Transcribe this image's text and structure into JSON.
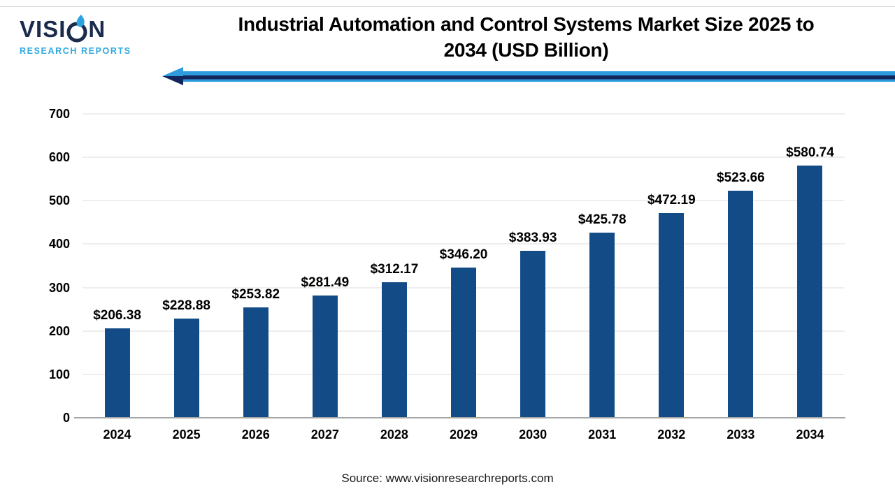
{
  "logo": {
    "brand_part1": "VISI",
    "brand_part2": "N",
    "subtitle": "RESEARCH REPORTS"
  },
  "header": {
    "title_line1": "Industrial Automation and Control Systems Market Size 2025 to",
    "title_line2": "2034 (USD Billion)"
  },
  "source": "Source: www.visionresearchreports.com",
  "colors": {
    "bar_blue": "#134b87",
    "light_blue": "#2e9bdf",
    "arrow_navy": "#12265c",
    "logo_navy": "#1a2b4c",
    "logo_blue": "#2fa9e1"
  },
  "chart_data": {
    "type": "bar",
    "title": "Industrial Automation and Control Systems Market Size 2025 to 2034 (USD Billion)",
    "xlabel": "",
    "ylabel": "",
    "categories": [
      "2024",
      "2025",
      "2026",
      "2027",
      "2028",
      "2029",
      "2030",
      "2031",
      "2032",
      "2033",
      "2034"
    ],
    "values": [
      206.38,
      228.88,
      253.82,
      281.49,
      312.17,
      346.2,
      383.93,
      425.78,
      472.19,
      523.66,
      580.74
    ],
    "labels": [
      "$206.38",
      "$228.88",
      "$253.82",
      "$281.49",
      "$312.17",
      "$346.20",
      "$383.93",
      "$425.78",
      "$472.19",
      "$523.66",
      "$580.74"
    ],
    "yticks": [
      0,
      100,
      200,
      300,
      400,
      500,
      600,
      700
    ],
    "ylim": [
      0,
      700
    ],
    "grid": true,
    "legend": "none",
    "bar_color": "#134b87"
  }
}
